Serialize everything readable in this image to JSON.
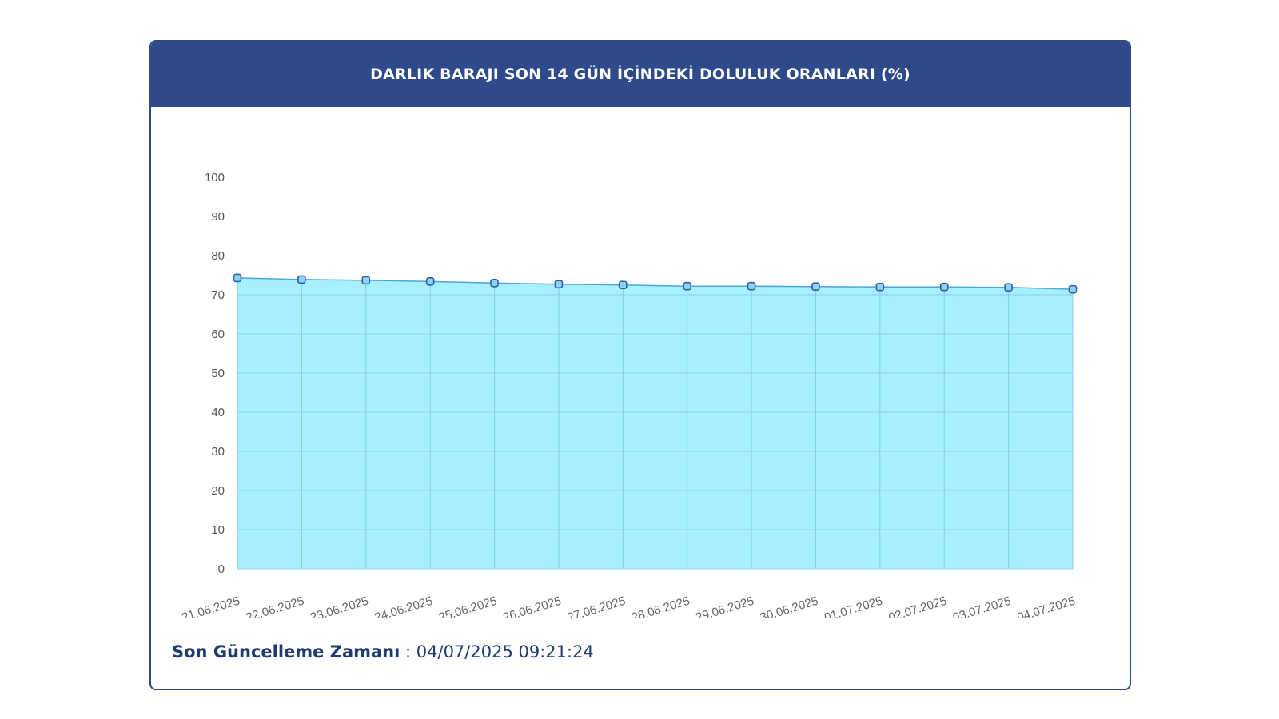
{
  "card": {
    "title": "DARLIK BARAJI SON 14 GÜN İÇİNDEKİ DOLULUK ORANLARI (%)"
  },
  "footer": {
    "label": "Son Güncelleme Zamanı",
    "separator": " : ",
    "value": "04/07/2025 09:21:24"
  },
  "colors": {
    "header": "#2e4a8b",
    "area_fill": "#a8efff",
    "line": "#4aa8d8",
    "marker": "#2f5fa8"
  },
  "chart_data": {
    "type": "area",
    "categories": [
      "21.06.2025",
      "22.06.2025",
      "23.06.2025",
      "24.06.2025",
      "25.06.2025",
      "26.06.2025",
      "27.06.2025",
      "28.06.2025",
      "29.06.2025",
      "30.06.2025",
      "01.07.2025",
      "02.07.2025",
      "03.07.2025",
      "04.07.2025"
    ],
    "values": [
      74.3,
      73.9,
      73.7,
      73.4,
      73.0,
      72.7,
      72.5,
      72.2,
      72.2,
      72.1,
      72.0,
      72.0,
      71.9,
      71.4
    ],
    "ylim": [
      0,
      100
    ],
    "yticks": [
      0,
      10,
      20,
      30,
      40,
      50,
      60,
      70,
      80,
      90,
      100
    ],
    "grid": true,
    "legend": "none"
  }
}
